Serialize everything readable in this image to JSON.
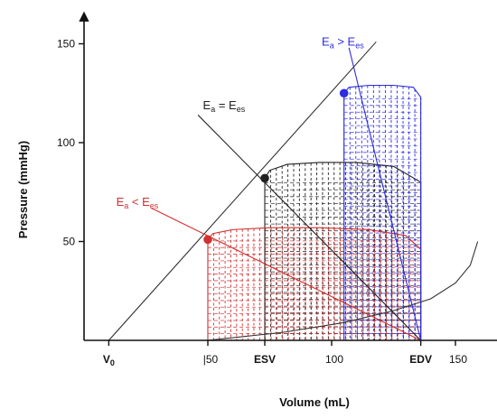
{
  "chart_data": {
    "type": "line",
    "xlabel": "Volume (mL)",
    "ylabel": "Pressure (mmHg)",
    "xlim": [
      0,
      165
    ],
    "ylim": [
      0,
      162
    ],
    "xticks": [
      {
        "value": 50,
        "label": "|50"
      },
      {
        "value": 100,
        "label": "100"
      },
      {
        "value": 150,
        "label": "150"
      }
    ],
    "yticks": [
      {
        "value": 50,
        "label": "50"
      },
      {
        "value": 100,
        "label": "100"
      },
      {
        "value": 150,
        "label": "150"
      }
    ],
    "x_markers": [
      {
        "value": 10,
        "label": "V",
        "sub": "0"
      },
      {
        "value": 73,
        "label": "ESV",
        "sub": ""
      },
      {
        "value": 136,
        "label": "EDV",
        "sub": ""
      }
    ],
    "esp_line": {
      "points": [
        [
          10,
          0
        ],
        [
          118,
          151
        ]
      ],
      "color": "#333333"
    },
    "edpvr": {
      "points": [
        [
          50,
          0
        ],
        [
          80,
          4
        ],
        [
          105,
          9
        ],
        [
          125,
          15
        ],
        [
          140,
          21
        ],
        [
          150,
          29
        ],
        [
          156,
          38
        ],
        [
          159,
          50
        ]
      ],
      "color": "#333333"
    },
    "loops": [
      {
        "name": "black",
        "color": "#222222",
        "esv": 73,
        "esp": 82,
        "edv": 136,
        "edp": 0,
        "top": [
          [
            73,
            82
          ],
          [
            75,
            86
          ],
          [
            82,
            89
          ],
          [
            95,
            90
          ],
          [
            110,
            90
          ],
          [
            125,
            88
          ],
          [
            136,
            80
          ]
        ],
        "ea_label": {
          "main": "E",
          "sub1": "a",
          "mid": " = E",
          "sub2": "es"
        },
        "ea_label_at": [
          48,
          117
        ],
        "ea_line_from": [
          46,
          114
        ]
      },
      {
        "name": "red",
        "color": "#d23030",
        "esv": 50,
        "esp": 51,
        "edv": 136,
        "edp": 0,
        "top": [
          [
            50,
            51
          ],
          [
            52,
            54
          ],
          [
            60,
            56
          ],
          [
            75,
            57
          ],
          [
            95,
            57
          ],
          [
            115,
            56
          ],
          [
            130,
            53
          ],
          [
            136,
            46
          ]
        ],
        "ea_label": {
          "main": "E",
          "sub1": "a",
          "mid": " < E",
          "sub2": "es"
        },
        "ea_label_at": [
          13,
          68
        ],
        "ea_line_from": [
          27,
          67
        ]
      },
      {
        "name": "blue",
        "color": "#2c2ce0",
        "esv": 105,
        "esp": 125,
        "edv": 136,
        "edp": 0,
        "top": [
          [
            105,
            125
          ],
          [
            107,
            128
          ],
          [
            115,
            129
          ],
          [
            125,
            129
          ],
          [
            133,
            128
          ],
          [
            136,
            123
          ]
        ],
        "ea_label": {
          "main": "E",
          "sub1": "a",
          "mid": " > E",
          "sub2": "es"
        },
        "ea_label_at": [
          96,
          149
        ],
        "ea_line_from": [
          107,
          148
        ]
      }
    ]
  }
}
